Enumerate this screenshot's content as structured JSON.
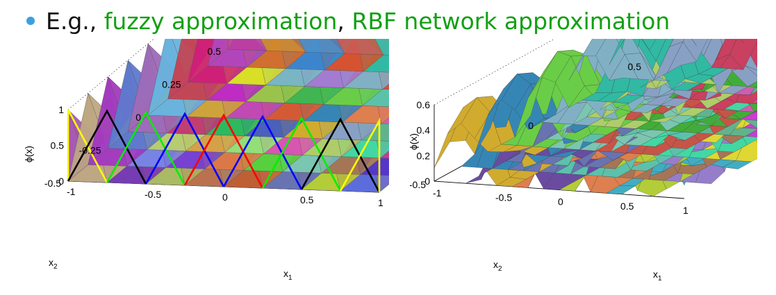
{
  "headline": {
    "prefix": "E.g.,",
    "item1": "fuzzy approximation",
    "separator": ",",
    "item2": "RBF network approximation",
    "bullet_color": "#3ba0e0",
    "highlight_color": "#12a012"
  },
  "chart_data": [
    {
      "type": "surface",
      "surface": "triangular membership functions (fuzzy partition)",
      "x": [
        -1,
        -0.75,
        -0.5,
        -0.25,
        0,
        0.25,
        0.5,
        0.75,
        1
      ],
      "y": [
        -0.5,
        -0.375,
        -0.25,
        -0.125,
        0,
        0.125,
        0.25,
        0.375,
        0.5
      ],
      "peak": 1,
      "xlabel": "x",
      "xlabel_sub": "1",
      "ylabel": "x",
      "ylabel_sub": "2",
      "zlabel": "ϕ(x)",
      "xlim": [
        -1,
        1
      ],
      "ylim": [
        -0.5,
        0.5
      ],
      "zlim": [
        0,
        1
      ],
      "xticks": [
        "-1",
        "-0.5",
        "0",
        "0.5",
        "1"
      ],
      "yticks": [
        "-0.5",
        "-0.25",
        "0",
        "0.25",
        "0.5"
      ],
      "zticks": [
        "0",
        "0.5",
        "1"
      ],
      "outline_colors": [
        "#ff0000",
        "#0000ff",
        "#00ee00",
        "#000000",
        "#ffff00"
      ]
    },
    {
      "type": "surface",
      "surface": "normalized radial basis functions",
      "peak": 0.6,
      "xlabel": "x",
      "xlabel_sub": "1",
      "ylabel": "x",
      "ylabel_sub": "2",
      "zlabel": "ϕ(x)",
      "xlim": [
        -1,
        1
      ],
      "ylim": [
        -0.5,
        0.5
      ],
      "zlim": [
        0,
        0.6
      ],
      "xticks": [
        "-1",
        "-0.5",
        "0",
        "0.5",
        "1"
      ],
      "yticks": [
        "-0.5",
        "0",
        "0.5"
      ],
      "zticks": [
        "0",
        "0.2",
        "0.4",
        "0.6"
      ]
    }
  ]
}
